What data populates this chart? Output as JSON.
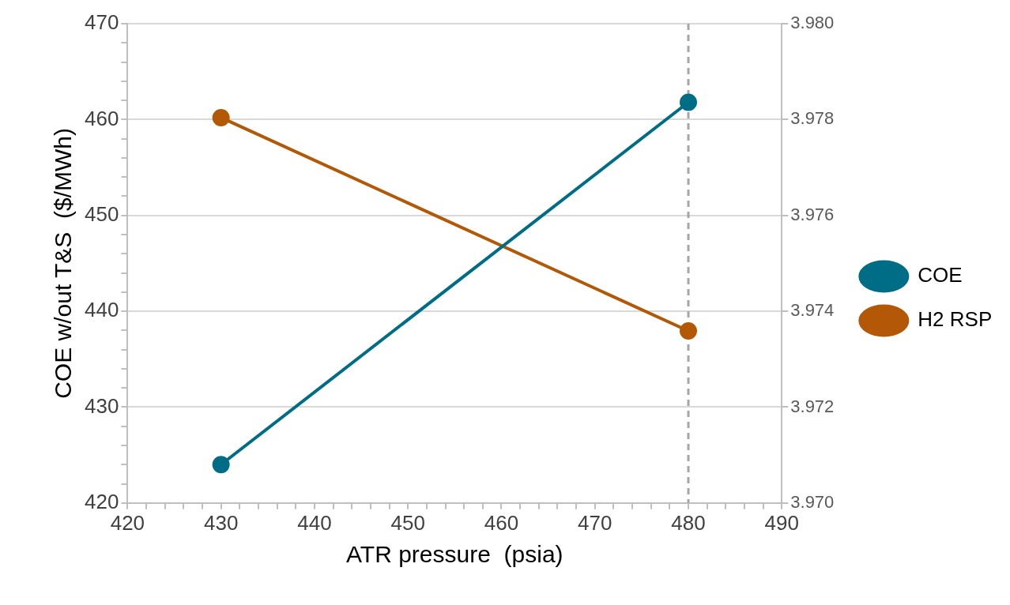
{
  "chart_data": {
    "type": "line",
    "xlabel": "ATR pressure  (psia)",
    "ylabel": "COE w/out T&S  ($/MWh)",
    "x": [
      430,
      480
    ],
    "series": [
      {
        "name": "COE",
        "color": "#006d86",
        "values": [
          424.0,
          461.8
        ]
      },
      {
        "name": "H2 RSP",
        "color": "#b35806",
        "values": [
          3.97804,
          3.97359
        ],
        "axis": "y2"
      }
    ],
    "xlim": [
      420,
      490
    ],
    "xticks": [
      420,
      {
        "value": 422,
        "label": null
      },
      {
        "value": 424,
        "label": null
      },
      {
        "value": 426,
        "label": null
      },
      {
        "value": 428,
        "label": null
      },
      430,
      {
        "value": 432,
        "label": null
      },
      {
        "value": 434,
        "label": null
      },
      {
        "value": 436,
        "label": null
      },
      {
        "value": 438,
        "label": null
      },
      440,
      {
        "value": 442,
        "label": null
      },
      {
        "value": 444,
        "label": null
      },
      {
        "value": 446,
        "label": null
      },
      {
        "value": 448,
        "label": null
      },
      450,
      {
        "value": 452,
        "label": null
      },
      {
        "value": 454,
        "label": null
      },
      {
        "value": 456,
        "label": null
      },
      {
        "value": 458,
        "label": null
      },
      460,
      {
        "value": 462,
        "label": null
      },
      {
        "value": 464,
        "label": null
      },
      {
        "value": 466,
        "label": null
      },
      {
        "value": 468,
        "label": null
      },
      470,
      {
        "value": 472,
        "label": null
      },
      {
        "value": 474,
        "label": null
      },
      {
        "value": 476,
        "label": null
      },
      {
        "value": 478,
        "label": null
      },
      480,
      {
        "value": 482,
        "label": null
      },
      {
        "value": 484,
        "label": null
      },
      {
        "value": 486,
        "label": null
      },
      {
        "value": 488,
        "label": null
      },
      490
    ],
    "ylim": [
      420,
      470
    ],
    "yticks": [
      420,
      {
        "value": 422,
        "label": null
      },
      {
        "value": 424,
        "label": null
      },
      {
        "value": 426,
        "label": null
      },
      {
        "value": 428,
        "label": null
      },
      430,
      {
        "value": 432,
        "label": null
      },
      {
        "value": 434,
        "label": null
      },
      {
        "value": 436,
        "label": null
      },
      {
        "value": 438,
        "label": null
      },
      440,
      {
        "value": 442,
        "label": null
      },
      {
        "value": 444,
        "label": null
      },
      {
        "value": 446,
        "label": null
      },
      {
        "value": 448,
        "label": null
      },
      450,
      {
        "value": 452,
        "label": null
      },
      {
        "value": 454,
        "label": null
      },
      {
        "value": 456,
        "label": null
      },
      {
        "value": 458,
        "label": null
      },
      460,
      {
        "value": 462,
        "label": null
      },
      {
        "value": 464,
        "label": null
      },
      {
        "value": 466,
        "label": null
      },
      {
        "value": 468,
        "label": null
      },
      470
    ],
    "y2lim": [
      3.97,
      3.98
    ],
    "y2ticks": [
      {
        "value": 3.97,
        "label": "3.970"
      },
      {
        "value": 3.972,
        "label": "3.972"
      },
      {
        "value": 3.974,
        "label": "3.974"
      },
      {
        "value": 3.976,
        "label": "3.976"
      },
      {
        "value": 3.978,
        "label": "3.978"
      },
      {
        "value": 3.98,
        "label": "3.980"
      }
    ],
    "ref_lines": [
      {
        "axis": "x",
        "value": 480,
        "color": "#a6a6a6",
        "line_style": "dashed"
      }
    ],
    "grid": "y",
    "legend": "right",
    "marker": "circle",
    "line_style": "solid"
  }
}
